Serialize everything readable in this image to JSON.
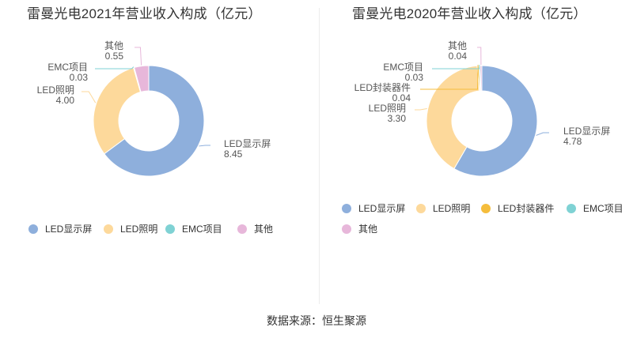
{
  "source": "数据来源：恒生聚源",
  "chart_data": [
    {
      "type": "pie",
      "title": "雷曼光电2021年营业收入构成（亿元）",
      "legend_position": "bottom-left",
      "slices": [
        {
          "name": "LED显示屏",
          "value": 8.45,
          "color": "#8eafdc"
        },
        {
          "name": "LED照明",
          "value": 4.0,
          "color": "#fdd99b"
        },
        {
          "name": "EMC项目",
          "value": 0.03,
          "color": "#7fd2d4"
        },
        {
          "name": "其他",
          "value": 0.55,
          "color": "#e7b7da"
        }
      ],
      "value_labels": [
        "8.45",
        "4.00",
        "0.03",
        "0.55"
      ]
    },
    {
      "type": "pie",
      "title": "雷曼光电2020年营业收入构成（亿元）",
      "legend_position": "bottom-left",
      "slices": [
        {
          "name": "LED显示屏",
          "value": 4.78,
          "color": "#8eafdc"
        },
        {
          "name": "LED照明",
          "value": 3.3,
          "color": "#fdd99b"
        },
        {
          "name": "LED封装器件",
          "value": 0.04,
          "color": "#f5bd3c"
        },
        {
          "name": "EMC项目",
          "value": 0.03,
          "color": "#7fd2d4"
        },
        {
          "name": "其他",
          "value": 0.04,
          "color": "#e7b7da"
        }
      ],
      "value_labels": [
        "4.78",
        "3.30",
        "0.04",
        "0.03",
        "0.04"
      ]
    }
  ]
}
